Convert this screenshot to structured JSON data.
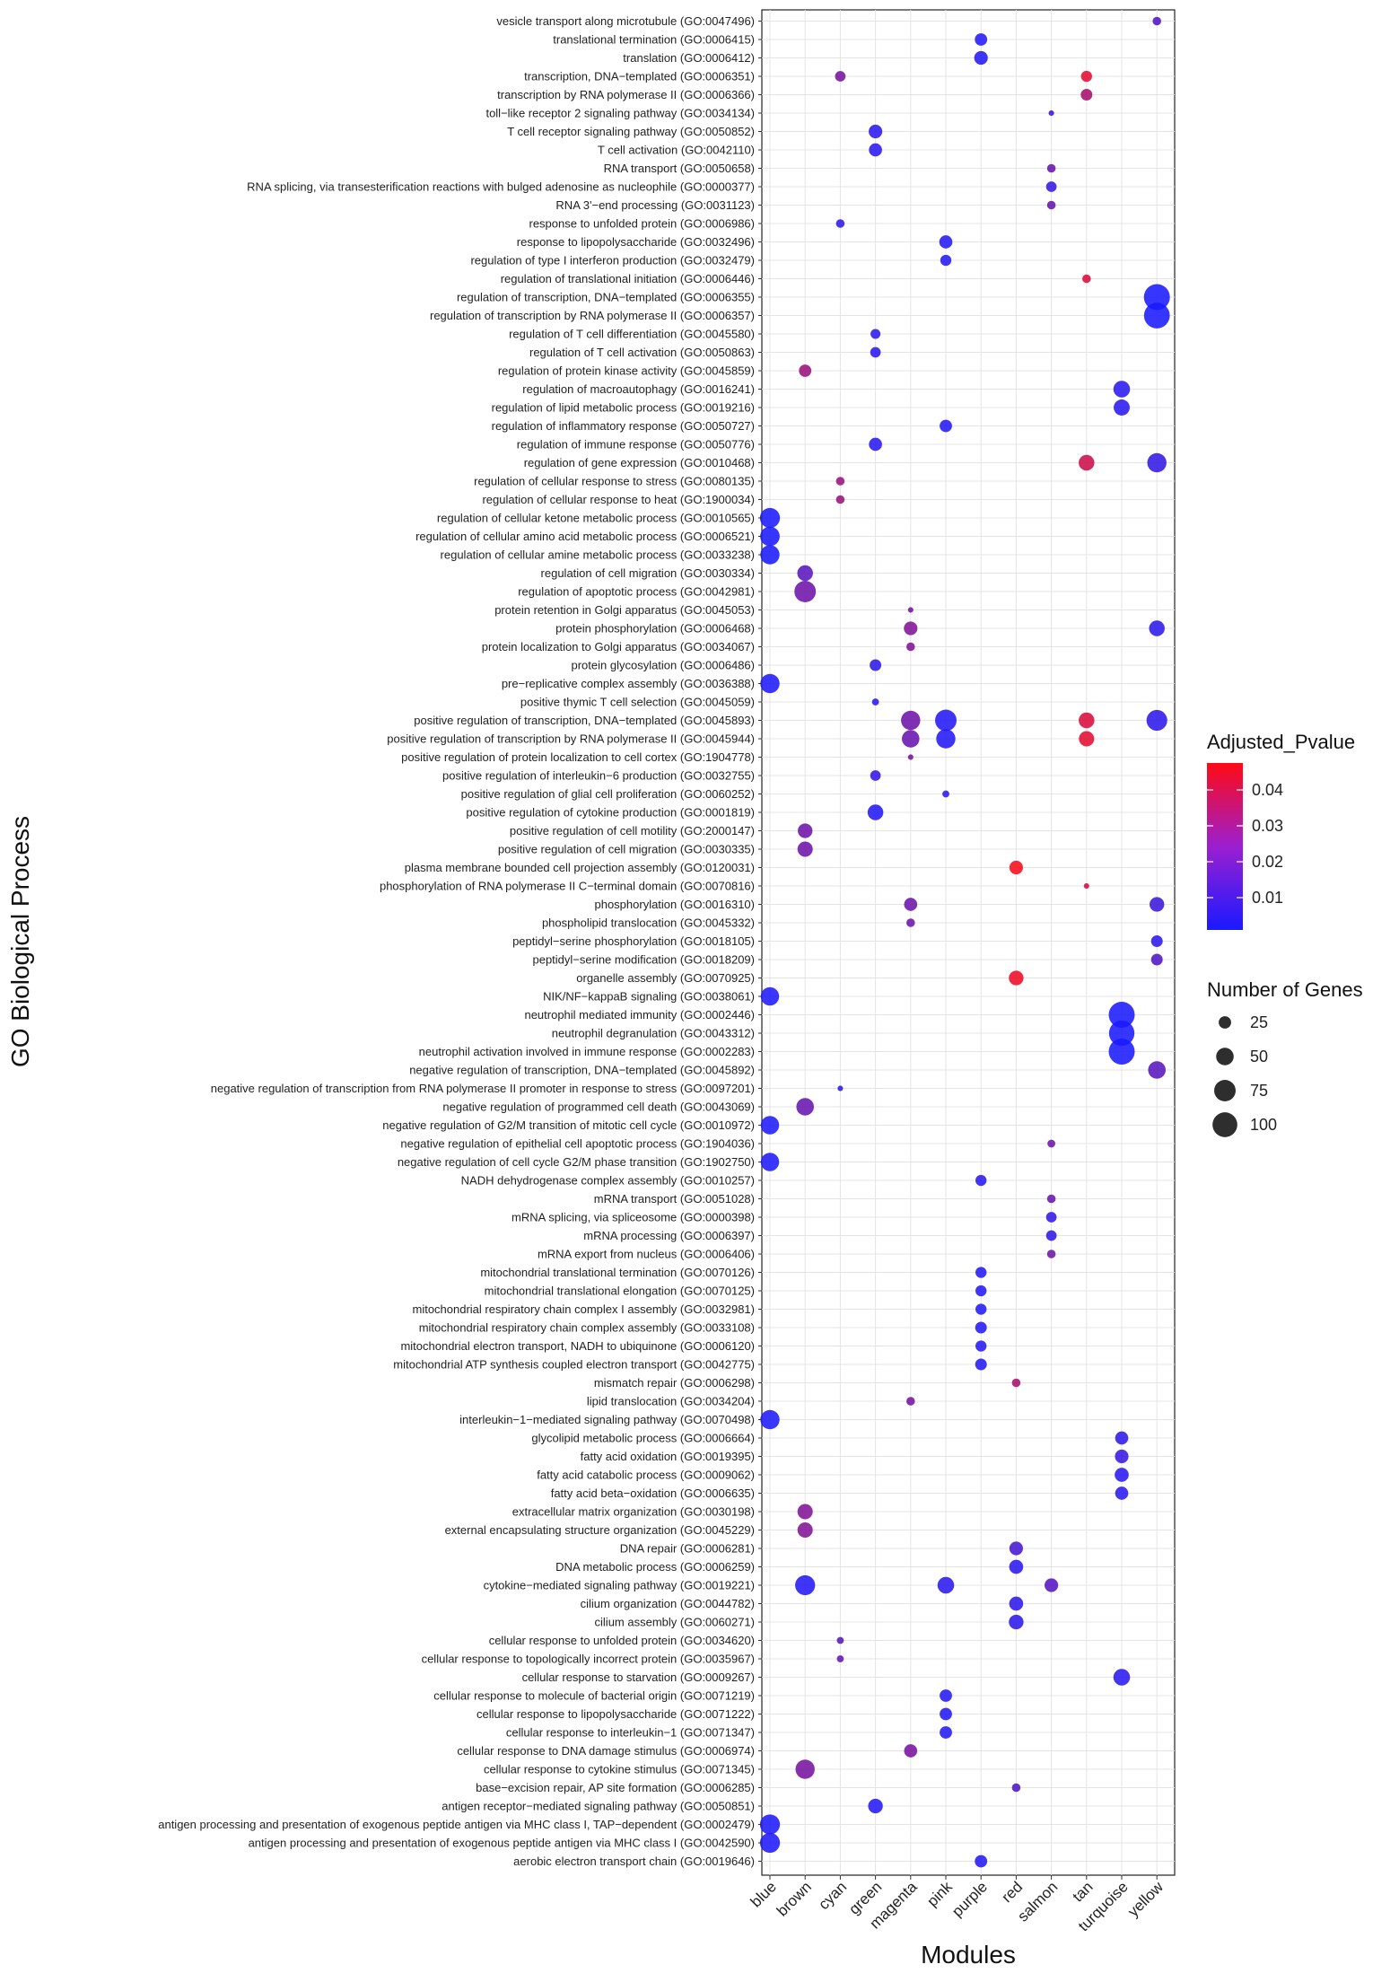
{
  "chart_data": {
    "type": "scatter",
    "title": "",
    "xlabel": "Modules",
    "ylabel": "GO Biological Process",
    "modules": [
      "blue",
      "brown",
      "cyan",
      "green",
      "magenta",
      "pink",
      "purple",
      "red",
      "salmon",
      "tan",
      "turquoise",
      "yellow"
    ],
    "terms": [
      "vesicle transport along microtubule (GO:0047496)",
      "translational termination (GO:0006415)",
      "translation (GO:0006412)",
      "transcription, DNA−templated (GO:0006351)",
      "transcription by RNA polymerase II (GO:0006366)",
      "toll−like receptor 2 signaling pathway (GO:0034134)",
      "T cell receptor signaling pathway (GO:0050852)",
      "T cell activation (GO:0042110)",
      "RNA transport (GO:0050658)",
      "RNA splicing, via transesterification reactions with bulged adenosine as nucleophile (GO:0000377)",
      "RNA 3'−end processing (GO:0031123)",
      "response to unfolded protein (GO:0006986)",
      "response to lipopolysaccharide (GO:0032496)",
      "regulation of type I interferon production (GO:0032479)",
      "regulation of translational initiation (GO:0006446)",
      "regulation of transcription, DNA−templated (GO:0006355)",
      "regulation of transcription by RNA polymerase II (GO:0006357)",
      "regulation of T cell differentiation (GO:0045580)",
      "regulation of T cell activation (GO:0050863)",
      "regulation of protein kinase activity (GO:0045859)",
      "regulation of macroautophagy (GO:0016241)",
      "regulation of lipid metabolic process (GO:0019216)",
      "regulation of inflammatory response (GO:0050727)",
      "regulation of immune response (GO:0050776)",
      "regulation of gene expression (GO:0010468)",
      "regulation of cellular response to stress (GO:0080135)",
      "regulation of cellular response to heat (GO:1900034)",
      "regulation of cellular ketone metabolic process (GO:0010565)",
      "regulation of cellular amino acid metabolic process (GO:0006521)",
      "regulation of cellular amine metabolic process (GO:0033238)",
      "regulation of cell migration (GO:0030334)",
      "regulation of apoptotic process (GO:0042981)",
      "protein retention in Golgi apparatus (GO:0045053)",
      "protein phosphorylation (GO:0006468)",
      "protein localization to Golgi apparatus (GO:0034067)",
      "protein glycosylation (GO:0006486)",
      "pre−replicative complex assembly (GO:0036388)",
      "positive thymic T cell selection (GO:0045059)",
      "positive regulation of transcription, DNA−templated (GO:0045893)",
      "positive regulation of transcription by RNA polymerase II (GO:0045944)",
      "positive regulation of protein localization to cell cortex (GO:1904778)",
      "positive regulation of interleukin−6 production (GO:0032755)",
      "positive regulation of glial cell proliferation (GO:0060252)",
      "positive regulation of cytokine production (GO:0001819)",
      "positive regulation of cell motility (GO:2000147)",
      "positive regulation of cell migration (GO:0030335)",
      "plasma membrane bounded cell projection assembly (GO:0120031)",
      "phosphorylation of RNA polymerase II C−terminal domain (GO:0070816)",
      "phosphorylation (GO:0016310)",
      "phospholipid translocation (GO:0045332)",
      "peptidyl−serine phosphorylation (GO:0018105)",
      "peptidyl−serine modification (GO:0018209)",
      "organelle assembly (GO:0070925)",
      "NIK/NF−kappaB signaling (GO:0038061)",
      "neutrophil mediated immunity (GO:0002446)",
      "neutrophil degranulation (GO:0043312)",
      "neutrophil activation involved in immune response (GO:0002283)",
      "negative regulation of transcription, DNA−templated (GO:0045892)",
      "negative regulation of transcription from RNA polymerase II promoter in response to stress (GO:0097201)",
      "negative regulation of programmed cell death (GO:0043069)",
      "negative regulation of G2/M transition of mitotic cell cycle (GO:0010972)",
      "negative regulation of epithelial cell apoptotic process (GO:1904036)",
      "negative regulation of cell cycle G2/M phase transition (GO:1902750)",
      "NADH dehydrogenase complex assembly (GO:0010257)",
      "mRNA transport (GO:0051028)",
      "mRNA splicing, via spliceosome (GO:0000398)",
      "mRNA processing (GO:0006397)",
      "mRNA export from nucleus (GO:0006406)",
      "mitochondrial translational termination (GO:0070126)",
      "mitochondrial translational elongation (GO:0070125)",
      "mitochondrial respiratory chain complex I assembly (GO:0032981)",
      "mitochondrial respiratory chain complex assembly (GO:0033108)",
      "mitochondrial electron transport, NADH to ubiquinone (GO:0006120)",
      "mitochondrial ATP synthesis coupled electron transport (GO:0042775)",
      "mismatch repair (GO:0006298)",
      "lipid translocation (GO:0034204)",
      "interleukin−1−mediated signaling pathway (GO:0070498)",
      "glycolipid metabolic process (GO:0006664)",
      "fatty acid oxidation (GO:0019395)",
      "fatty acid catabolic process (GO:0009062)",
      "fatty acid beta−oxidation (GO:0006635)",
      "extracellular matrix organization (GO:0030198)",
      "external encapsulating structure organization (GO:0045229)",
      "DNA repair (GO:0006281)",
      "DNA metabolic process (GO:0006259)",
      "cytokine−mediated signaling pathway (GO:0019221)",
      "cilium organization (GO:0044782)",
      "cilium assembly (GO:0060271)",
      "cellular response to unfolded protein (GO:0034620)",
      "cellular response to topologically incorrect protein (GO:0035967)",
      "cellular response to starvation (GO:0009267)",
      "cellular response to molecule of bacterial origin (GO:0071219)",
      "cellular response to lipopolysaccharide (GO:0071222)",
      "cellular response to interleukin−1 (GO:0071347)",
      "cellular response to DNA damage stimulus (GO:0006974)",
      "cellular response to cytokine stimulus (GO:0071345)",
      "base−excision repair, AP site formation (GO:0006285)",
      "antigen receptor−mediated signaling pathway (GO:0050851)",
      "antigen processing and presentation of exogenous peptide antigen via MHC class I, TAP−dependent (GO:0002479)",
      "antigen processing and presentation of exogenous peptide antigen via MHC class I (GO:0042590)",
      "aerobic electron transport chain (GO:0019646)"
    ],
    "points": [
      {
        "term": 0,
        "module": "yellow",
        "genes": 12,
        "padj": 0.012
      },
      {
        "term": 1,
        "module": "purple",
        "genes": 25,
        "padj": 0.003
      },
      {
        "term": 2,
        "module": "purple",
        "genes": 30,
        "padj": 0.003
      },
      {
        "term": 3,
        "module": "cyan",
        "genes": 18,
        "padj": 0.02
      },
      {
        "term": 3,
        "module": "tan",
        "genes": 20,
        "padj": 0.042
      },
      {
        "term": 4,
        "module": "tan",
        "genes": 22,
        "padj": 0.03
      },
      {
        "term": 5,
        "module": "salmon",
        "genes": 5,
        "padj": 0.008
      },
      {
        "term": 6,
        "module": "green",
        "genes": 30,
        "padj": 0.004
      },
      {
        "term": 7,
        "module": "green",
        "genes": 28,
        "padj": 0.004
      },
      {
        "term": 8,
        "module": "salmon",
        "genes": 12,
        "padj": 0.016
      },
      {
        "term": 9,
        "module": "salmon",
        "genes": 18,
        "padj": 0.006
      },
      {
        "term": 10,
        "module": "salmon",
        "genes": 12,
        "padj": 0.016
      },
      {
        "term": 11,
        "module": "cyan",
        "genes": 12,
        "padj": 0.005
      },
      {
        "term": 12,
        "module": "pink",
        "genes": 28,
        "padj": 0.003
      },
      {
        "term": 13,
        "module": "pink",
        "genes": 20,
        "padj": 0.003
      },
      {
        "term": 14,
        "module": "tan",
        "genes": 12,
        "padj": 0.04
      },
      {
        "term": 15,
        "module": "yellow",
        "genes": 110,
        "padj": 0.001
      },
      {
        "term": 16,
        "module": "yellow",
        "genes": 108,
        "padj": 0.001
      },
      {
        "term": 17,
        "module": "green",
        "genes": 16,
        "padj": 0.004
      },
      {
        "term": 18,
        "module": "green",
        "genes": 18,
        "padj": 0.004
      },
      {
        "term": 19,
        "module": "brown",
        "genes": 25,
        "padj": 0.027
      },
      {
        "term": 20,
        "module": "turquoise",
        "genes": 45,
        "padj": 0.004
      },
      {
        "term": 21,
        "module": "turquoise",
        "genes": 42,
        "padj": 0.004
      },
      {
        "term": 22,
        "module": "pink",
        "genes": 25,
        "padj": 0.003
      },
      {
        "term": 23,
        "module": "green",
        "genes": 28,
        "padj": 0.004
      },
      {
        "term": 24,
        "module": "tan",
        "genes": 40,
        "padj": 0.037
      },
      {
        "term": 24,
        "module": "yellow",
        "genes": 60,
        "padj": 0.006
      },
      {
        "term": 25,
        "module": "cyan",
        "genes": 12,
        "padj": 0.027
      },
      {
        "term": 26,
        "module": "cyan",
        "genes": 12,
        "padj": 0.027
      },
      {
        "term": 27,
        "module": "blue",
        "genes": 65,
        "padj": 0.001
      },
      {
        "term": 28,
        "module": "blue",
        "genes": 62,
        "padj": 0.001
      },
      {
        "term": 29,
        "module": "blue",
        "genes": 60,
        "padj": 0.001
      },
      {
        "term": 30,
        "module": "brown",
        "genes": 40,
        "padj": 0.014
      },
      {
        "term": 31,
        "module": "brown",
        "genes": 75,
        "padj": 0.018
      },
      {
        "term": 32,
        "module": "magenta",
        "genes": 5,
        "padj": 0.02
      },
      {
        "term": 33,
        "module": "magenta",
        "genes": 30,
        "padj": 0.022
      },
      {
        "term": 33,
        "module": "yellow",
        "genes": 40,
        "padj": 0.005
      },
      {
        "term": 34,
        "module": "magenta",
        "genes": 12,
        "padj": 0.022
      },
      {
        "term": 35,
        "module": "green",
        "genes": 22,
        "padj": 0.005
      },
      {
        "term": 36,
        "module": "blue",
        "genes": 60,
        "padj": 0.002
      },
      {
        "term": 37,
        "module": "green",
        "genes": 8,
        "padj": 0.004
      },
      {
        "term": 38,
        "module": "magenta",
        "genes": 60,
        "padj": 0.018
      },
      {
        "term": 38,
        "module": "pink",
        "genes": 75,
        "padj": 0.003
      },
      {
        "term": 38,
        "module": "tan",
        "genes": 40,
        "padj": 0.04
      },
      {
        "term": 38,
        "module": "yellow",
        "genes": 70,
        "padj": 0.005
      },
      {
        "term": 39,
        "module": "magenta",
        "genes": 50,
        "padj": 0.017
      },
      {
        "term": 39,
        "module": "pink",
        "genes": 60,
        "padj": 0.003
      },
      {
        "term": 39,
        "module": "tan",
        "genes": 38,
        "padj": 0.042
      },
      {
        "term": 40,
        "module": "magenta",
        "genes": 5,
        "padj": 0.02
      },
      {
        "term": 41,
        "module": "green",
        "genes": 18,
        "padj": 0.006
      },
      {
        "term": 42,
        "module": "pink",
        "genes": 8,
        "padj": 0.004
      },
      {
        "term": 43,
        "module": "green",
        "genes": 40,
        "padj": 0.003
      },
      {
        "term": 44,
        "module": "brown",
        "genes": 35,
        "padj": 0.018
      },
      {
        "term": 45,
        "module": "brown",
        "genes": 38,
        "padj": 0.018
      },
      {
        "term": 46,
        "module": "red",
        "genes": 30,
        "padj": 0.046
      },
      {
        "term": 47,
        "module": "tan",
        "genes": 5,
        "padj": 0.038
      },
      {
        "term": 48,
        "module": "magenta",
        "genes": 28,
        "padj": 0.018
      },
      {
        "term": 48,
        "module": "yellow",
        "genes": 35,
        "padj": 0.008
      },
      {
        "term": 49,
        "module": "magenta",
        "genes": 12,
        "padj": 0.018
      },
      {
        "term": 50,
        "module": "yellow",
        "genes": 22,
        "padj": 0.005
      },
      {
        "term": 51,
        "module": "yellow",
        "genes": 22,
        "padj": 0.012
      },
      {
        "term": 52,
        "module": "red",
        "genes": 35,
        "padj": 0.044
      },
      {
        "term": 53,
        "module": "blue",
        "genes": 55,
        "padj": 0.002
      },
      {
        "term": 54,
        "module": "turquoise",
        "genes": 110,
        "padj": 0.001
      },
      {
        "term": 55,
        "module": "turquoise",
        "genes": 105,
        "padj": 0.001
      },
      {
        "term": 56,
        "module": "turquoise",
        "genes": 110,
        "padj": 0.001
      },
      {
        "term": 57,
        "module": "yellow",
        "genes": 50,
        "padj": 0.014
      },
      {
        "term": 58,
        "module": "cyan",
        "genes": 5,
        "padj": 0.005
      },
      {
        "term": 59,
        "module": "brown",
        "genes": 50,
        "padj": 0.017
      },
      {
        "term": 60,
        "module": "blue",
        "genes": 55,
        "padj": 0.002
      },
      {
        "term": 61,
        "module": "salmon",
        "genes": 10,
        "padj": 0.018
      },
      {
        "term": 62,
        "module": "blue",
        "genes": 55,
        "padj": 0.002
      },
      {
        "term": 63,
        "module": "purple",
        "genes": 20,
        "padj": 0.004
      },
      {
        "term": 64,
        "module": "salmon",
        "genes": 12,
        "padj": 0.017
      },
      {
        "term": 65,
        "module": "salmon",
        "genes": 18,
        "padj": 0.006
      },
      {
        "term": 66,
        "module": "salmon",
        "genes": 18,
        "padj": 0.005
      },
      {
        "term": 67,
        "module": "salmon",
        "genes": 12,
        "padj": 0.018
      },
      {
        "term": 68,
        "module": "purple",
        "genes": 20,
        "padj": 0.003
      },
      {
        "term": 69,
        "module": "purple",
        "genes": 20,
        "padj": 0.003
      },
      {
        "term": 70,
        "module": "purple",
        "genes": 20,
        "padj": 0.003
      },
      {
        "term": 71,
        "module": "purple",
        "genes": 22,
        "padj": 0.003
      },
      {
        "term": 72,
        "module": "purple",
        "genes": 20,
        "padj": 0.003
      },
      {
        "term": 73,
        "module": "purple",
        "genes": 22,
        "padj": 0.003
      },
      {
        "term": 74,
        "module": "red",
        "genes": 12,
        "padj": 0.03
      },
      {
        "term": 75,
        "module": "magenta",
        "genes": 12,
        "padj": 0.02
      },
      {
        "term": 76,
        "module": "blue",
        "genes": 60,
        "padj": 0.002
      },
      {
        "term": 77,
        "module": "turquoise",
        "genes": 28,
        "padj": 0.005
      },
      {
        "term": 78,
        "module": "turquoise",
        "genes": 30,
        "padj": 0.007
      },
      {
        "term": 79,
        "module": "turquoise",
        "genes": 32,
        "padj": 0.004
      },
      {
        "term": 80,
        "module": "turquoise",
        "genes": 28,
        "padj": 0.004
      },
      {
        "term": 81,
        "module": "brown",
        "genes": 38,
        "padj": 0.022
      },
      {
        "term": 82,
        "module": "brown",
        "genes": 38,
        "padj": 0.022
      },
      {
        "term": 83,
        "module": "red",
        "genes": 30,
        "padj": 0.01
      },
      {
        "term": 84,
        "module": "red",
        "genes": 32,
        "padj": 0.004
      },
      {
        "term": 85,
        "module": "brown",
        "genes": 65,
        "padj": 0.003
      },
      {
        "term": 85,
        "module": "pink",
        "genes": 45,
        "padj": 0.004
      },
      {
        "term": 85,
        "module": "salmon",
        "genes": 30,
        "padj": 0.013
      },
      {
        "term": 86,
        "module": "red",
        "genes": 32,
        "padj": 0.005
      },
      {
        "term": 87,
        "module": "red",
        "genes": 35,
        "padj": 0.005
      },
      {
        "term": 88,
        "module": "cyan",
        "genes": 8,
        "padj": 0.014
      },
      {
        "term": 89,
        "module": "cyan",
        "genes": 8,
        "padj": 0.016
      },
      {
        "term": 90,
        "module": "turquoise",
        "genes": 45,
        "padj": 0.004
      },
      {
        "term": 91,
        "module": "pink",
        "genes": 25,
        "padj": 0.003
      },
      {
        "term": 92,
        "module": "pink",
        "genes": 25,
        "padj": 0.003
      },
      {
        "term": 93,
        "module": "pink",
        "genes": 25,
        "padj": 0.003
      },
      {
        "term": 94,
        "module": "magenta",
        "genes": 28,
        "padj": 0.02
      },
      {
        "term": 95,
        "module": "brown",
        "genes": 60,
        "padj": 0.02
      },
      {
        "term": 96,
        "module": "red",
        "genes": 12,
        "padj": 0.012
      },
      {
        "term": 97,
        "module": "green",
        "genes": 35,
        "padj": 0.003
      },
      {
        "term": 98,
        "module": "blue",
        "genes": 65,
        "padj": 0.002
      },
      {
        "term": 99,
        "module": "blue",
        "genes": 65,
        "padj": 0.002
      },
      {
        "term": 100,
        "module": "purple",
        "genes": 25,
        "padj": 0.003
      }
    ],
    "color_legend": {
      "title": "Adjusted_Pvalue",
      "range": [
        0.001,
        0.0475
      ],
      "ticks": [
        0.01,
        0.02,
        0.03,
        0.04
      ],
      "tick_labels": [
        "0.01",
        "0.02",
        "0.03",
        "0.04"
      ],
      "low_color": "#1a1aff",
      "high_color": "#ff0a14"
    },
    "size_legend": {
      "title": "Number of Genes",
      "values": [
        25,
        50,
        75,
        100
      ],
      "labels": [
        "25",
        "50",
        "75",
        "100"
      ],
      "max_genes": 110
    },
    "grid": true,
    "legend_position": "right"
  }
}
